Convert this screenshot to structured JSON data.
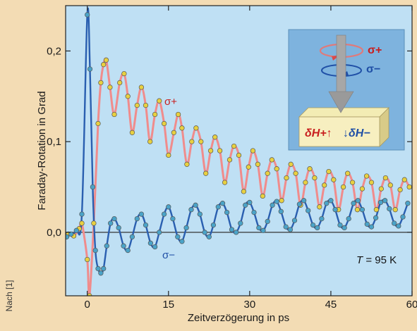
{
  "credit": "Nach [1]",
  "chart_data": {
    "type": "line",
    "xlabel": "Zeitverzögerung in ps",
    "ylabel": "Faraday-Rotation in Grad",
    "xlim": [
      -4,
      60
    ],
    "ylim": [
      -0.07,
      0.25
    ],
    "xticks": [
      0,
      15,
      30,
      45,
      60
    ],
    "xtick_labels": [
      "0",
      "15",
      "30",
      "45",
      "60"
    ],
    "yticks": [
      0.0,
      0.1,
      0.2
    ],
    "ytick_labels": [
      "0,0",
      "0,1",
      "0,2"
    ],
    "grid": false,
    "background": "#bfe0f4",
    "annotation": {
      "text": "T",
      "text_rest": " = 95 K"
    },
    "series": [
      {
        "name": "σ+",
        "line_color": "#f08c8c",
        "marker_color": "#e8d040",
        "points": [
          [
            -3.5,
            -0.002
          ],
          [
            -2.5,
            -0.004
          ],
          [
            -1.5,
            0.004
          ],
          [
            -1,
            0.01
          ],
          [
            0,
            -0.03
          ],
          [
            0.4,
            -0.07
          ],
          [
            1.2,
            0.01
          ],
          [
            2,
            0.12
          ],
          [
            2.5,
            0.165
          ],
          [
            3,
            0.185
          ],
          [
            3.5,
            0.19
          ],
          [
            4.2,
            0.16
          ],
          [
            5,
            0.13
          ],
          [
            6,
            0.165
          ],
          [
            6.8,
            0.175
          ],
          [
            7.5,
            0.15
          ],
          [
            8.3,
            0.11
          ],
          [
            9.2,
            0.14
          ],
          [
            10,
            0.16
          ],
          [
            10.8,
            0.14
          ],
          [
            11.6,
            0.1
          ],
          [
            12.5,
            0.13
          ],
          [
            13.3,
            0.145
          ],
          [
            14.2,
            0.12
          ],
          [
            15,
            0.085
          ],
          [
            16,
            0.11
          ],
          [
            16.8,
            0.13
          ],
          [
            17.5,
            0.115
          ],
          [
            18.4,
            0.075
          ],
          [
            19.3,
            0.1
          ],
          [
            20.1,
            0.115
          ],
          [
            21,
            0.1
          ],
          [
            21.9,
            0.065
          ],
          [
            22.8,
            0.09
          ],
          [
            23.6,
            0.105
          ],
          [
            24.5,
            0.09
          ],
          [
            25.4,
            0.055
          ],
          [
            26.3,
            0.08
          ],
          [
            27.1,
            0.095
          ],
          [
            28,
            0.085
          ],
          [
            28.9,
            0.045
          ],
          [
            29.8,
            0.072
          ],
          [
            30.6,
            0.09
          ],
          [
            31.5,
            0.075
          ],
          [
            32.4,
            0.04
          ],
          [
            33.3,
            0.065
          ],
          [
            34.1,
            0.08
          ],
          [
            35,
            0.07
          ],
          [
            35.9,
            0.035
          ],
          [
            36.8,
            0.06
          ],
          [
            37.6,
            0.075
          ],
          [
            38.5,
            0.065
          ],
          [
            39.4,
            0.03
          ],
          [
            40.3,
            0.055
          ],
          [
            41.1,
            0.07
          ],
          [
            42,
            0.06
          ],
          [
            42.9,
            0.028
          ],
          [
            43.8,
            0.052
          ],
          [
            44.6,
            0.067
          ],
          [
            45.5,
            0.058
          ],
          [
            46.4,
            0.025
          ],
          [
            47.3,
            0.05
          ],
          [
            48.1,
            0.065
          ],
          [
            49,
            0.055
          ],
          [
            49.9,
            0.025
          ],
          [
            50.8,
            0.048
          ],
          [
            51.6,
            0.062
          ],
          [
            52.5,
            0.055
          ],
          [
            53.4,
            0.025
          ],
          [
            54.3,
            0.048
          ],
          [
            55.1,
            0.06
          ],
          [
            56,
            0.052
          ],
          [
            56.9,
            0.025
          ],
          [
            57.8,
            0.047
          ],
          [
            58.6,
            0.058
          ],
          [
            59.5,
            0.05
          ]
        ]
      },
      {
        "name": "σ−",
        "line_color": "#2a5fb0",
        "marker_color": "#4aa3c8",
        "points": [
          [
            -3.8,
            -0.005
          ],
          [
            -3,
            -0.002
          ],
          [
            -2,
            0.002
          ],
          [
            -1,
            0.02
          ],
          [
            0,
            0.24
          ],
          [
            0.5,
            0.18
          ],
          [
            1,
            0.05
          ],
          [
            1.5,
            -0.02
          ],
          [
            2,
            -0.04
          ],
          [
            2.5,
            -0.045
          ],
          [
            3,
            -0.04
          ],
          [
            3.6,
            -0.015
          ],
          [
            4.3,
            0.01
          ],
          [
            5,
            0.015
          ],
          [
            5.8,
            0.005
          ],
          [
            6.7,
            -0.015
          ],
          [
            7.5,
            -0.02
          ],
          [
            8.3,
            -0.005
          ],
          [
            9.2,
            0.015
          ],
          [
            10,
            0.02
          ],
          [
            10.8,
            0.008
          ],
          [
            11.7,
            -0.012
          ],
          [
            12.5,
            -0.016
          ],
          [
            13.3,
            0
          ],
          [
            14.2,
            0.02
          ],
          [
            15,
            0.028
          ],
          [
            15.8,
            0.015
          ],
          [
            16.7,
            -0.005
          ],
          [
            17.5,
            -0.01
          ],
          [
            18.3,
            0.005
          ],
          [
            19.2,
            0.025
          ],
          [
            20,
            0.03
          ],
          [
            20.8,
            0.02
          ],
          [
            21.7,
            0
          ],
          [
            22.5,
            -0.005
          ],
          [
            23.3,
            0.008
          ],
          [
            24.2,
            0.028
          ],
          [
            25,
            0.032
          ],
          [
            25.8,
            0.022
          ],
          [
            26.7,
            0.003
          ],
          [
            27.5,
            0
          ],
          [
            28.3,
            0.01
          ],
          [
            29.2,
            0.03
          ],
          [
            30,
            0.033
          ],
          [
            30.8,
            0.022
          ],
          [
            31.7,
            0.005
          ],
          [
            32.5,
            0.002
          ],
          [
            33.3,
            0.012
          ],
          [
            34.2,
            0.03
          ],
          [
            35,
            0.034
          ],
          [
            35.8,
            0.023
          ],
          [
            36.7,
            0.006
          ],
          [
            37.5,
            0.003
          ],
          [
            38.3,
            0.013
          ],
          [
            39.2,
            0.031
          ],
          [
            40,
            0.035
          ],
          [
            40.8,
            0.024
          ],
          [
            41.7,
            0.008
          ],
          [
            42.5,
            0.005
          ],
          [
            43.3,
            0.015
          ],
          [
            44.2,
            0.032
          ],
          [
            45,
            0.035
          ],
          [
            45.8,
            0.025
          ],
          [
            46.7,
            0.008
          ],
          [
            47.5,
            0.005
          ],
          [
            48.3,
            0.015
          ],
          [
            49.2,
            0.032
          ],
          [
            50,
            0.035
          ],
          [
            50.8,
            0.025
          ],
          [
            51.7,
            0.009
          ],
          [
            52.5,
            0.006
          ],
          [
            53.3,
            0.016
          ],
          [
            54.2,
            0.033
          ],
          [
            55,
            0.035
          ],
          [
            55.8,
            0.026
          ],
          [
            56.7,
            0.01
          ],
          [
            57.5,
            0.007
          ],
          [
            58.3,
            0.017
          ],
          [
            59.2,
            0.032
          ]
        ]
      }
    ]
  },
  "inset": {
    "sigma_plus": "σ+",
    "sigma_minus": "σ−",
    "dH_plus": "δH+↑",
    "dH_minus": "↓δH−"
  }
}
